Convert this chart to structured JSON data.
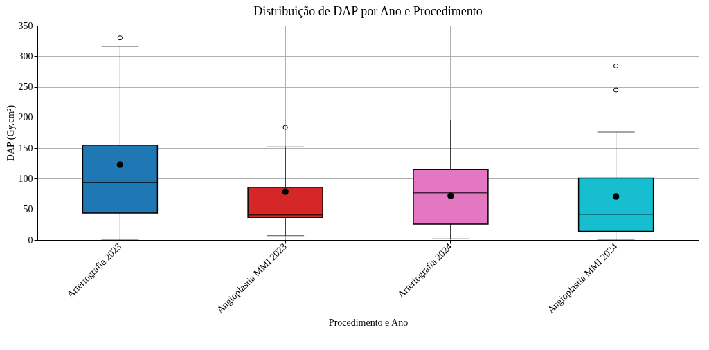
{
  "chart_data": {
    "type": "box",
    "title": "Distribuição de DAP por Ano e Procedimento",
    "xlabel": "Procedimento e Ano",
    "ylabel": "DAP (Gy.cm²)",
    "categories": [
      "Arteriografia 2023",
      "Angioplastia MMI 2023",
      "Arteriografia 2024",
      "Angioplastia MMI 2024"
    ],
    "colors": [
      "#1f77b4",
      "#d62728",
      "#e377c2",
      "#17becf"
    ],
    "boxes": [
      {
        "low": 0,
        "q1": 44,
        "median": 94,
        "q3": 155,
        "high": 316,
        "mean": 123,
        "outliers": [
          330
        ]
      },
      {
        "low": 7,
        "q1": 37,
        "median": 41,
        "q3": 86,
        "high": 152,
        "mean": 79,
        "outliers": [
          184
        ]
      },
      {
        "low": 2,
        "q1": 26,
        "median": 77,
        "q3": 115,
        "high": 196,
        "mean": 72
      },
      {
        "low": 0,
        "q1": 14,
        "median": 42,
        "q3": 101,
        "high": 176,
        "mean": 71,
        "outliers": [
          245,
          284
        ]
      }
    ],
    "ylim": [
      0,
      350
    ],
    "yticks": [
      0,
      50,
      100,
      150,
      200,
      250,
      300,
      350
    ],
    "grid": true
  }
}
